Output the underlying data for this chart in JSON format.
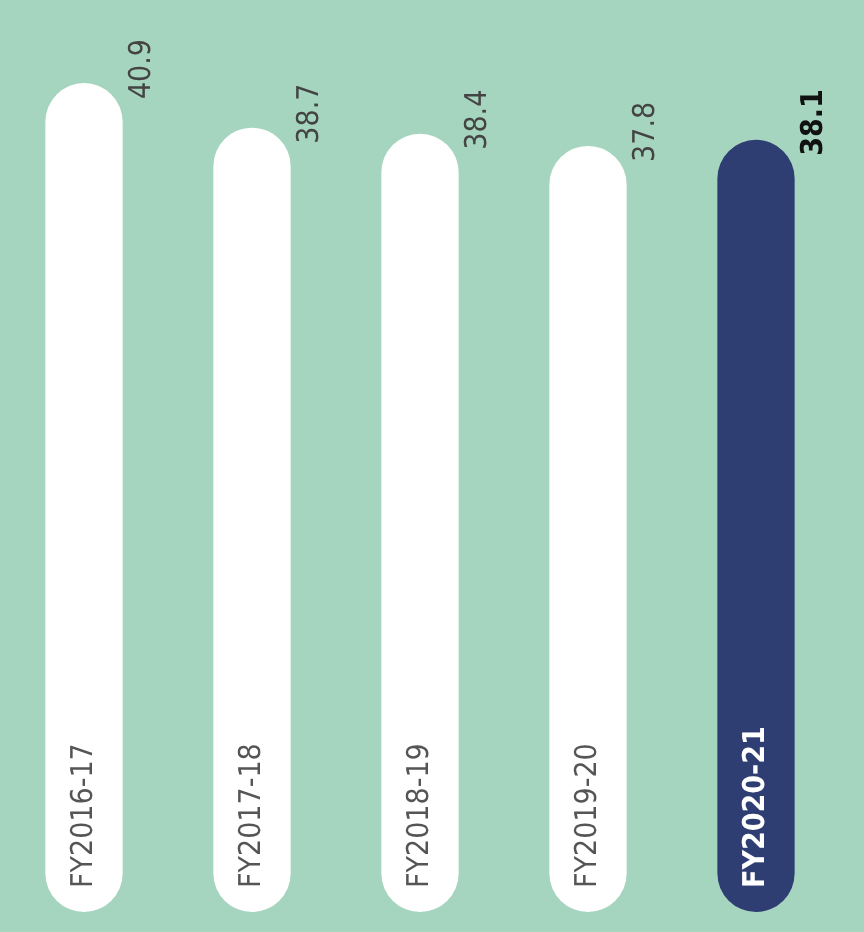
{
  "chart_data": {
    "type": "bar",
    "categories": [
      "FY2016-17",
      "FY2017-18",
      "FY2018-19",
      "FY2019-20",
      "FY2020-21"
    ],
    "values": [
      40.9,
      38.7,
      38.4,
      37.8,
      38.1
    ],
    "colors": [
      "#ffffff",
      "#ffffff",
      "#ffffff",
      "#ffffff",
      "#2e3d72"
    ],
    "data_labels": true
  }
}
